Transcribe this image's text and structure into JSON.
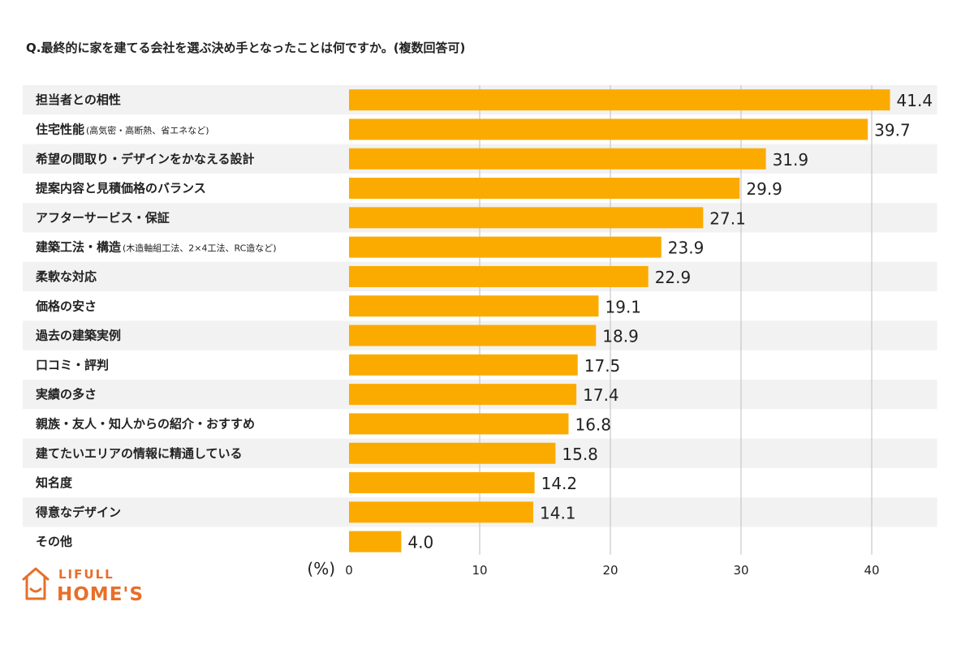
{
  "chart_data": {
    "type": "bar",
    "orientation": "horizontal",
    "title": "Q.最終的に家を建てる会社を選ぶ決め手となったことは何ですか。(複数回答可)",
    "unit_label": "(%)",
    "xlim": [
      0,
      45
    ],
    "xticks": [
      "0",
      "10",
      "20",
      "30",
      "40"
    ],
    "grid": "vertical",
    "bar_color": "#fbab00",
    "categories": [
      {
        "main": "担当者との相性",
        "sub": ""
      },
      {
        "main": "住宅性能",
        "sub": "(高気密・高断熱、省エネなど)"
      },
      {
        "main": "希望の間取り・デザインをかなえる設計",
        "sub": ""
      },
      {
        "main": "提案内容と見積価格のバランス",
        "sub": ""
      },
      {
        "main": "アフターサービス・保証",
        "sub": ""
      },
      {
        "main": "建築工法・構造",
        "sub": "(木造軸組工法、2×4工法、RC造など)"
      },
      {
        "main": "柔軟な対応",
        "sub": ""
      },
      {
        "main": "価格の安さ",
        "sub": ""
      },
      {
        "main": "過去の建築実例",
        "sub": ""
      },
      {
        "main": "口コミ・評判",
        "sub": ""
      },
      {
        "main": "実績の多さ",
        "sub": ""
      },
      {
        "main": "親族・友人・知人からの紹介・おすすめ",
        "sub": ""
      },
      {
        "main": "建てたいエリアの情報に精通している",
        "sub": ""
      },
      {
        "main": "知名度",
        "sub": ""
      },
      {
        "main": "得意なデザイン",
        "sub": ""
      },
      {
        "main": "その他",
        "sub": ""
      }
    ],
    "values": [
      41.4,
      39.7,
      31.9,
      29.9,
      27.1,
      23.9,
      22.9,
      19.1,
      18.9,
      17.5,
      17.4,
      16.8,
      15.8,
      14.2,
      14.1,
      4.0
    ],
    "value_labels": [
      "41.4",
      "39.7",
      "31.9",
      "29.9",
      "27.1",
      "23.9",
      "22.9",
      "19.1",
      "18.9",
      "17.5",
      "17.4",
      "16.8",
      "15.8",
      "14.2",
      "14.1",
      "4.0"
    ]
  },
  "logo": {
    "line1": "LIFULL",
    "line2": "HOME'S",
    "color": "#e76f2a"
  }
}
